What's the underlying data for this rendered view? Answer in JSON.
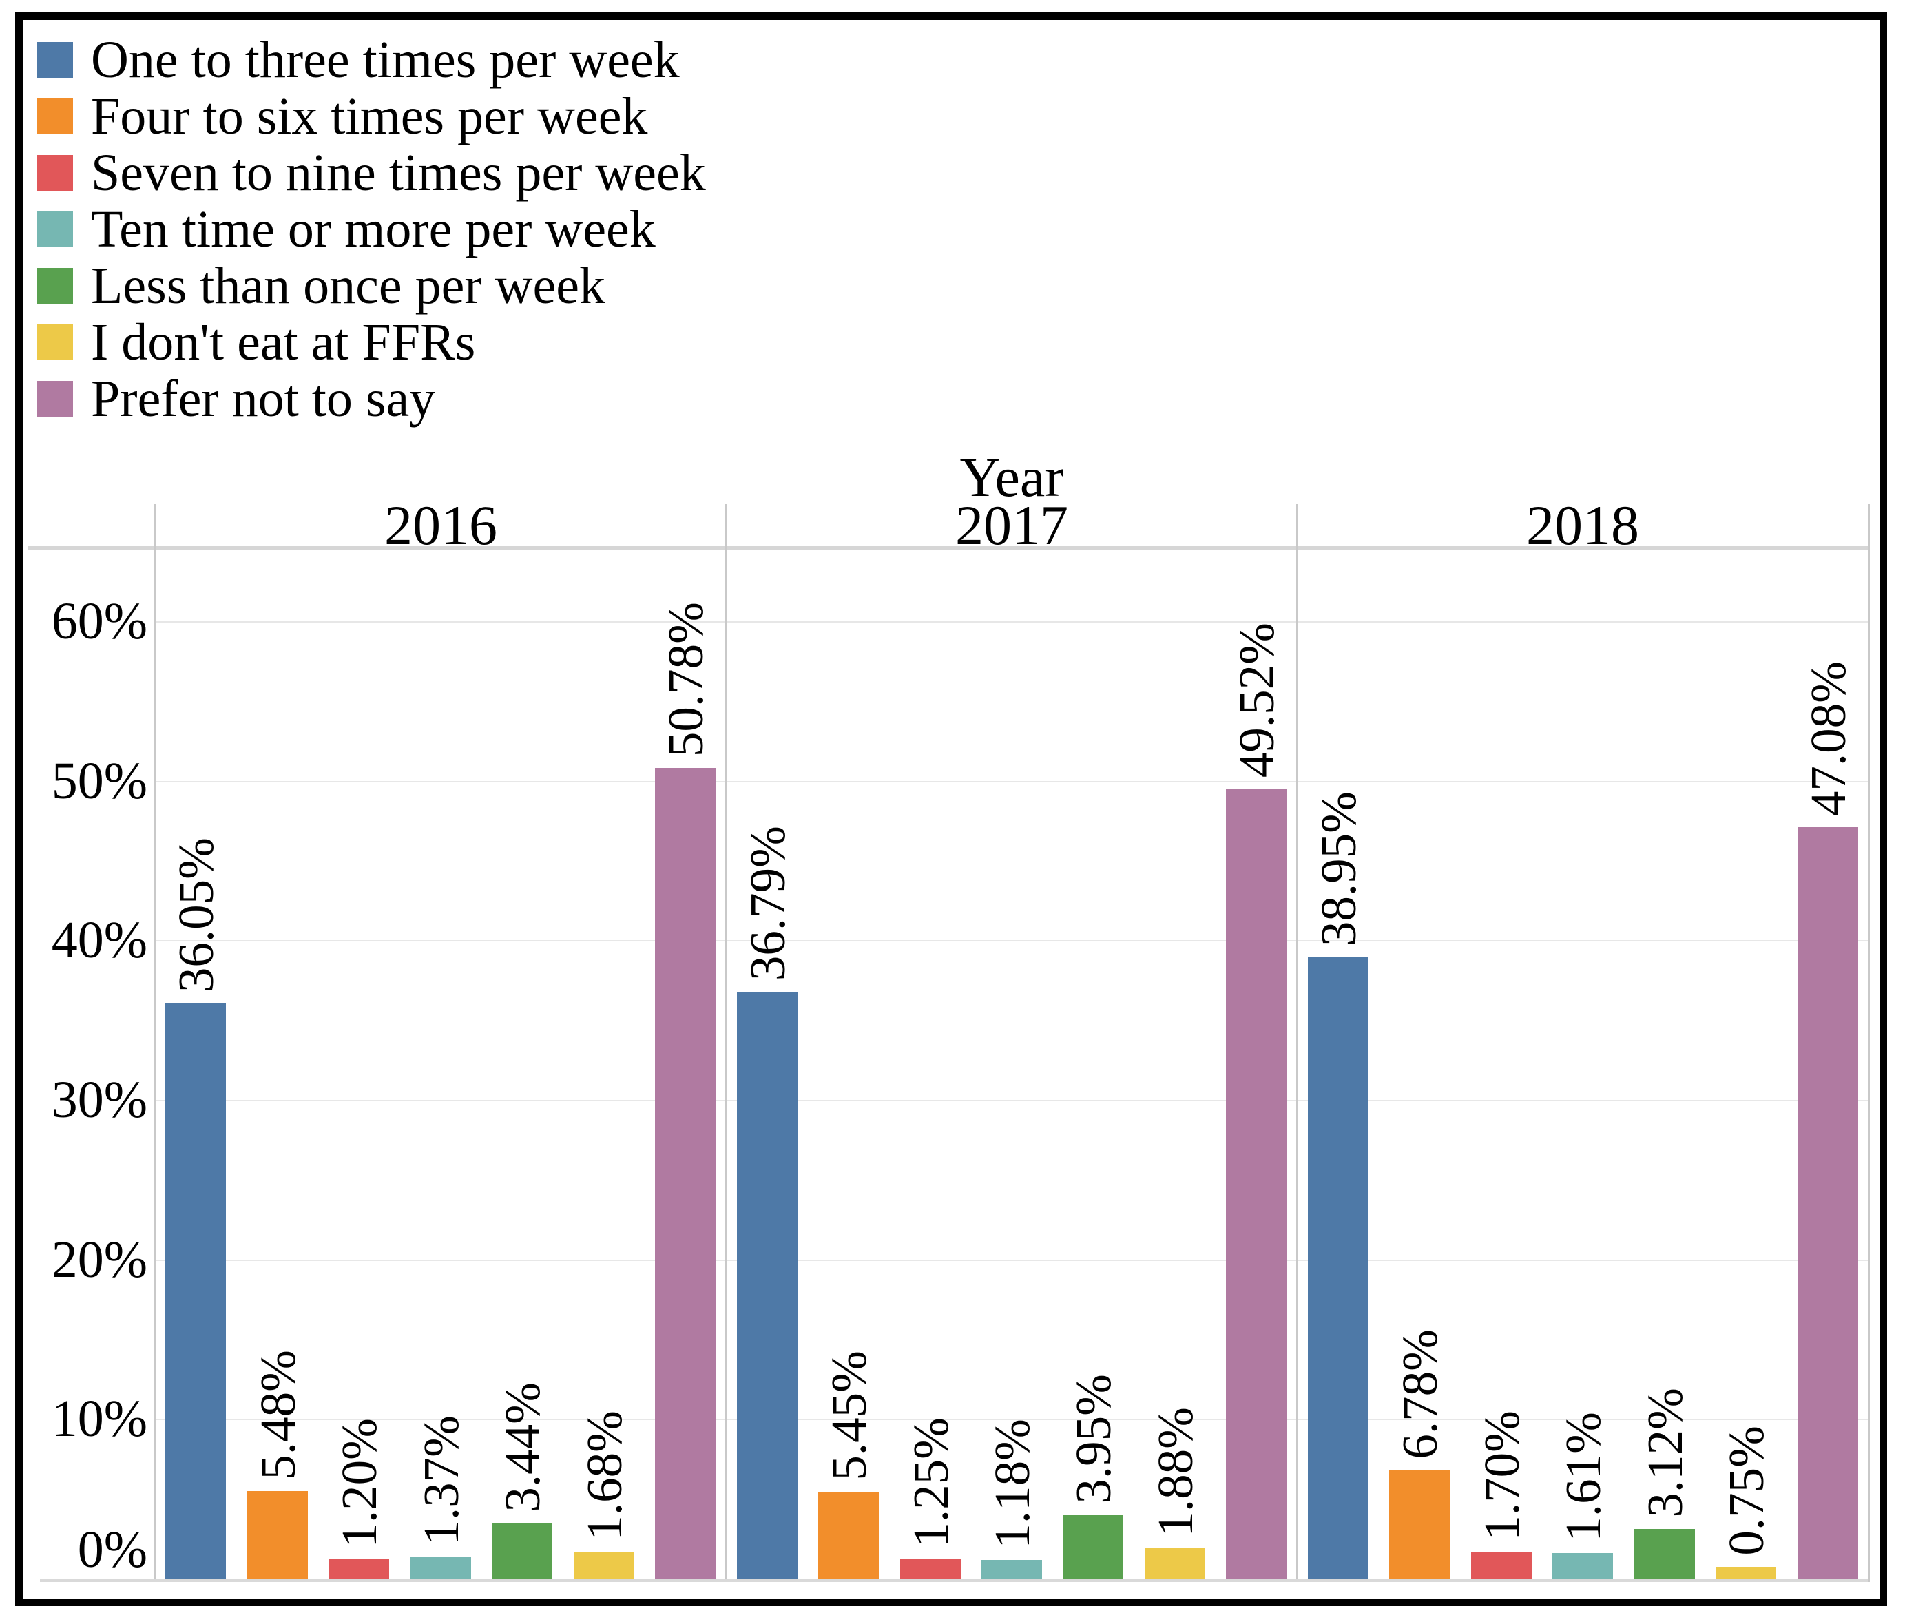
{
  "chart_data": {
    "type": "bar",
    "title": "Year",
    "facets": [
      "2016",
      "2017",
      "2018"
    ],
    "categories": [
      "One to three times per week",
      "Four to six times per week",
      "Seven to nine times per week",
      "Ten time or more per week",
      "Less than once per week",
      "I don't eat at FFRs",
      "Prefer not to say"
    ],
    "colors": [
      "#4e79a7",
      "#f28e2b",
      "#e15759",
      "#76b7b2",
      "#59a14f",
      "#edc948",
      "#b07aa1"
    ],
    "series": [
      {
        "name": "2016",
        "values": [
          36.05,
          5.48,
          1.2,
          1.37,
          3.44,
          1.68,
          50.78
        ]
      },
      {
        "name": "2017",
        "values": [
          36.79,
          5.45,
          1.25,
          1.18,
          3.95,
          1.88,
          49.52
        ]
      },
      {
        "name": "2018",
        "values": [
          38.95,
          6.78,
          1.7,
          1.61,
          3.12,
          0.75,
          47.08
        ]
      }
    ],
    "value_decimals": 2,
    "value_suffix": "%",
    "bar_label_rotation_deg": -90,
    "y_axis": {
      "tick_labels": [
        "60%",
        "50%",
        "40%",
        "30%",
        "20%",
        "10%",
        "0%"
      ],
      "tick_values": [
        60,
        50,
        40,
        30,
        20,
        10,
        0
      ],
      "min": 0,
      "max": 63
    },
    "grid": true,
    "legend_position": "top-left"
  }
}
